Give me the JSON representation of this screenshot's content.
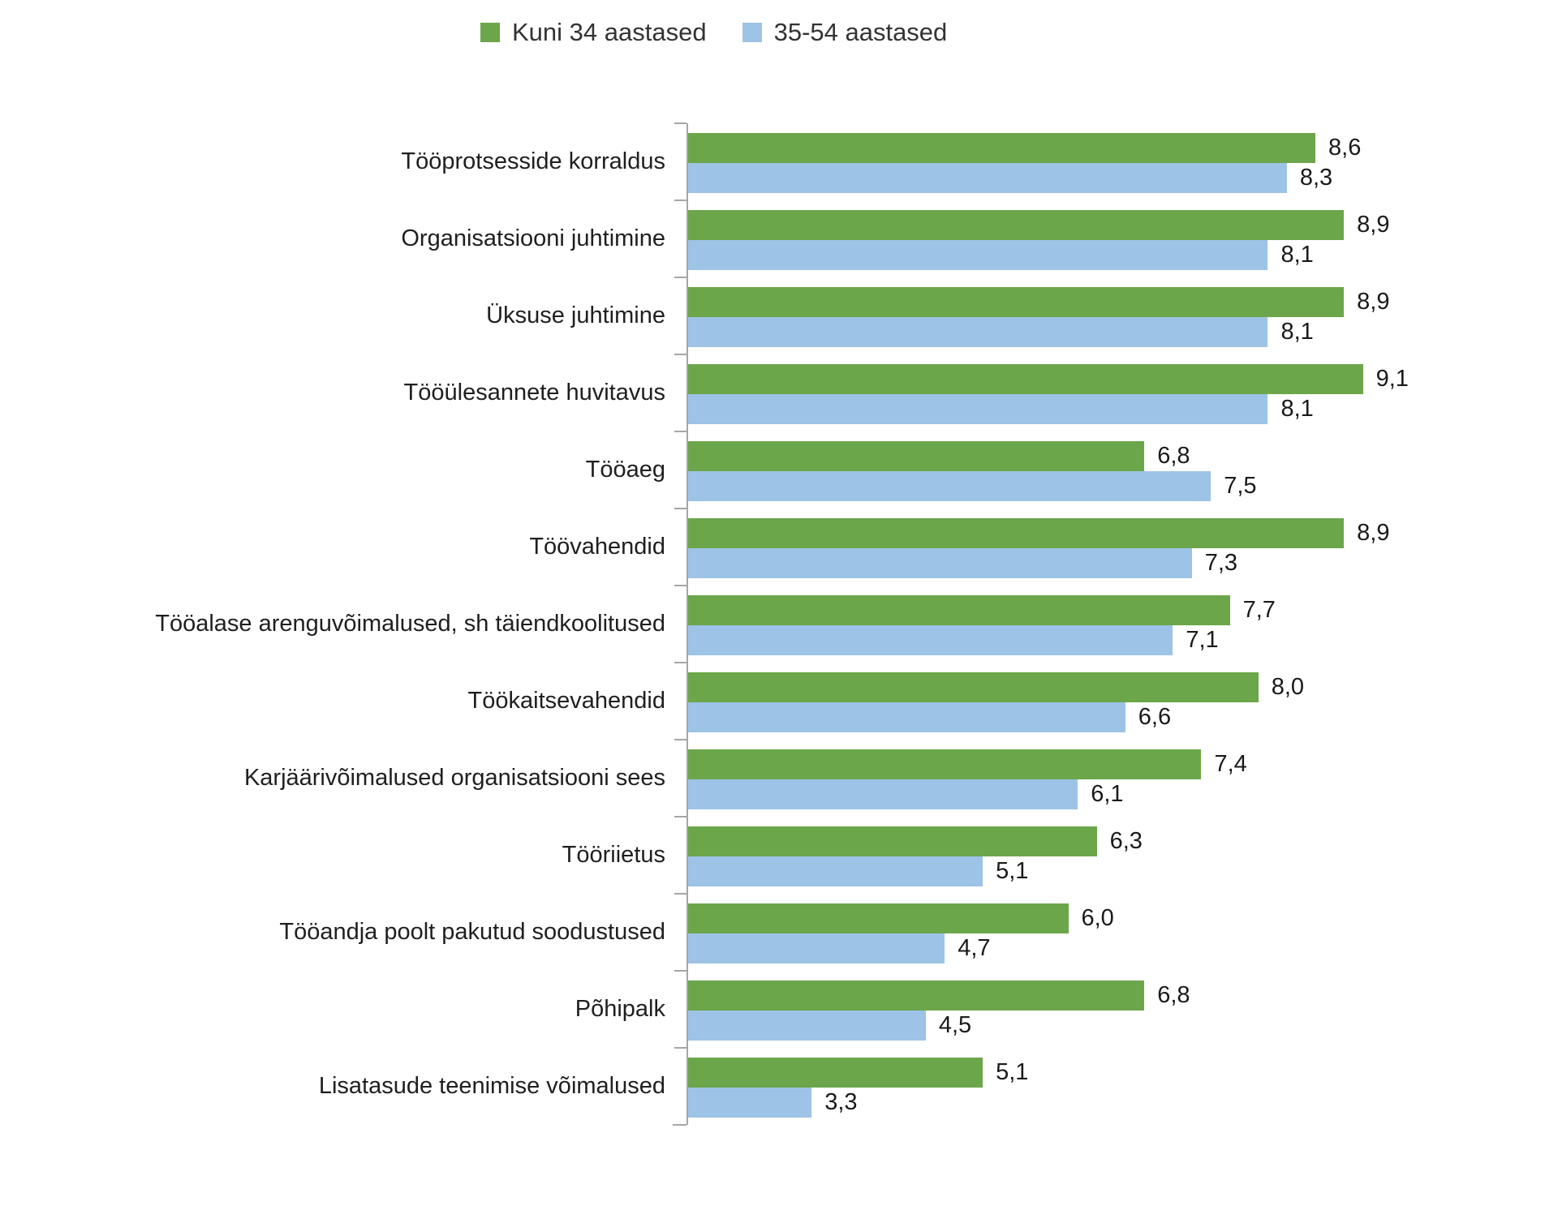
{
  "legend": {
    "items": [
      {
        "label": "Kuni 34 aastased",
        "color": "#6BA64A"
      },
      {
        "label": "35-54 aastased",
        "color": "#9DC3E6"
      }
    ]
  },
  "chart_data": {
    "type": "bar",
    "orientation": "horizontal",
    "title": "",
    "xlabel": "",
    "ylabel": "",
    "xlim": [
      2,
      10
    ],
    "grid": false,
    "legend_position": "top",
    "value_labels": true,
    "decimal_separator": ",",
    "categories": [
      "Tööprotsesside korraldus",
      "Organisatsiooni juhtimine",
      "Üksuse juhtimine",
      "Tööülesannete huvitavus",
      "Tööaeg",
      "Töövahendid",
      "Tööalase arenguvõimalused, sh täiendkoolitused",
      "Töökaitsevahendid",
      "Karjäärivõimalused organisatsiooni sees",
      "Tööriietus",
      "Tööandja poolt pakutud soodustused",
      "Põhipalk",
      "Lisatasude teenimise võimalused"
    ],
    "series": [
      {
        "name": "Kuni 34 aastased",
        "color": "#6BA64A",
        "values": [
          8.6,
          8.9,
          8.9,
          9.1,
          6.8,
          8.9,
          7.7,
          8.0,
          7.4,
          6.3,
          6.0,
          6.8,
          5.1
        ],
        "display_values": [
          "8,6",
          "8,9",
          "8,9",
          "9,1",
          "6,8",
          "8,9",
          "7,7",
          "8,0",
          "7,4",
          "6,3",
          "6,0",
          "6,8",
          "5,1"
        ]
      },
      {
        "name": "35-54 aastased",
        "color": "#9DC3E6",
        "values": [
          8.3,
          8.1,
          8.1,
          8.1,
          7.5,
          7.3,
          7.1,
          6.6,
          6.1,
          5.1,
          4.7,
          4.5,
          3.3
        ],
        "display_values": [
          "8,3",
          "8,1",
          "8,1",
          "8,1",
          "7,5",
          "7,3",
          "7,1",
          "6,6",
          "6,1",
          "5,1",
          "4,7",
          "4,5",
          "3,3"
        ]
      }
    ]
  }
}
